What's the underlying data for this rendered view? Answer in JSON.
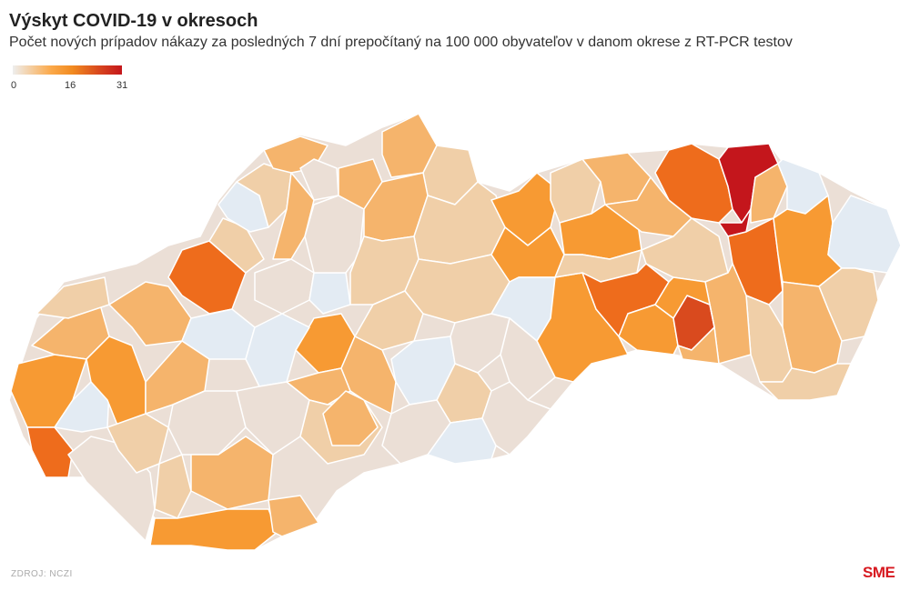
{
  "title": "Výskyt COVID-19 v okresoch",
  "subtitle": "Počet nových prípadov nákazy za posledných 7 dní prepočítaný na 100 000 obyvateľov v danom okrese z RT-PCR testov",
  "legend": {
    "min_label": "0",
    "mid_label": "16",
    "max_label": "31",
    "colors": [
      "#e3ebf3",
      "#ebdfd6",
      "#f0cfa8",
      "#f5b46c",
      "#f79a33",
      "#ee6c1c",
      "#c4161c"
    ]
  },
  "map": {
    "type": "choropleth",
    "region": "Slovakia districts",
    "scale_min": 0,
    "scale_mid": 16,
    "scale_max": 31
  },
  "footer": {
    "source": "ZDROJ: NCZI",
    "logo": "SME"
  }
}
